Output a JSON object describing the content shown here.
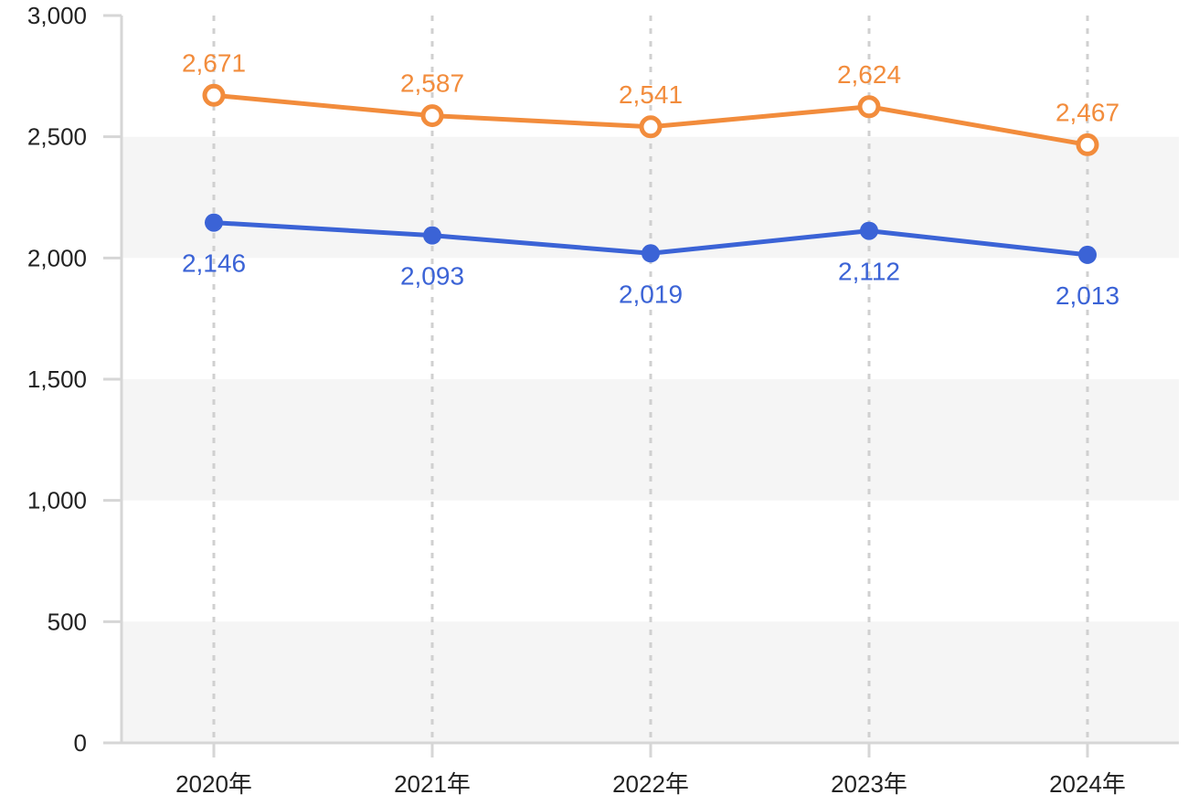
{
  "chart_data": {
    "type": "line",
    "categories": [
      "2020年",
      "2021年",
      "2022年",
      "2023年",
      "2024年"
    ],
    "ylim": [
      0,
      3000
    ],
    "y_ticks": [
      0,
      500,
      1000,
      1500,
      2000,
      2500,
      3000
    ],
    "y_tick_labels": [
      "0",
      "500",
      "1,000",
      "1,500",
      "2,000",
      "2,500",
      "3,000"
    ],
    "grid": "alternating horizontal bands with vertical dashed gridlines",
    "legend": "none",
    "series": [
      {
        "values": [
          2671,
          2587,
          2541,
          2624,
          2467
        ],
        "labels": [
          "2,671",
          "2,587",
          "2,541",
          "2,624",
          "2,467"
        ],
        "color": "#F28C3C",
        "marker": "hollow-circle",
        "label_position": "above"
      },
      {
        "values": [
          2146,
          2093,
          2019,
          2112,
          2013
        ],
        "labels": [
          "2,146",
          "2,093",
          "2,019",
          "2,112",
          "2,013"
        ],
        "color": "#3B63D6",
        "marker": "filled-circle",
        "label_position": "below"
      }
    ]
  }
}
